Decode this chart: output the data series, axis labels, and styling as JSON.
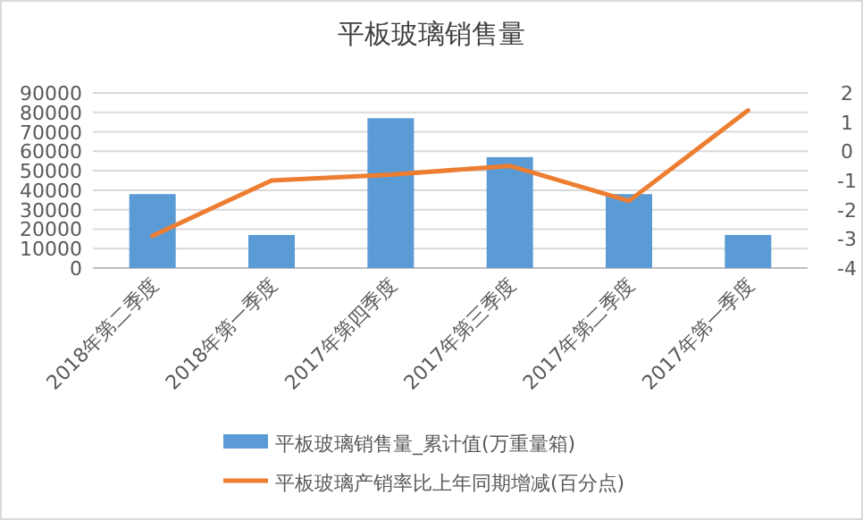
{
  "chart_data": {
    "type": "bar",
    "title": "平板玻璃销售量",
    "categories": [
      "2018年第二季度",
      "2018年第一季度",
      "2017年第四季度",
      "2017年第三季度",
      "2017年第二季度",
      "2017年第一季度"
    ],
    "series": [
      {
        "name": "平板玻璃销售量_累计值(万重量箱)",
        "color": "#5b9bd5",
        "values": [
          38000,
          17000,
          77000,
          57000,
          38000,
          17000
        ]
      },
      {
        "name": "平板玻璃产销率比上年同期增减(百分点)",
        "type": "line",
        "axis": "y2",
        "color": "#ed7d31",
        "values": [
          -2.9,
          -1.0,
          -0.8,
          -0.5,
          -1.7,
          1.4
        ]
      }
    ],
    "ylim": [
      0,
      90000
    ],
    "yticks": [
      0,
      10000,
      20000,
      30000,
      40000,
      50000,
      60000,
      70000,
      80000,
      90000
    ],
    "y2lim": [
      -4,
      2
    ],
    "y2ticks": [
      -4,
      -3,
      -2,
      -1,
      0,
      1,
      2
    ],
    "grid": "y",
    "legend": "bottom",
    "marker": "none",
    "line_style": "solid"
  }
}
